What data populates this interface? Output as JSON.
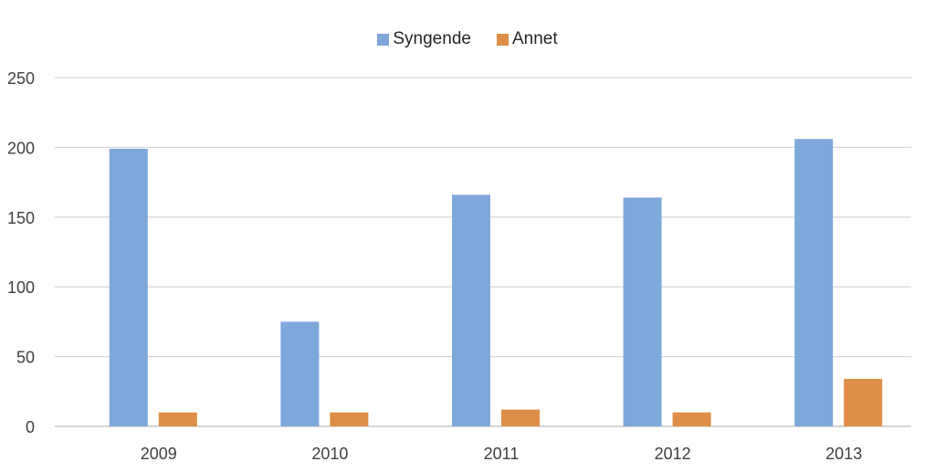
{
  "chart_data": {
    "type": "bar",
    "categories": [
      "2009",
      "2010",
      "2011",
      "2012",
      "2013"
    ],
    "series": [
      {
        "name": "Syngende",
        "values": [
          199,
          75,
          166,
          164,
          206
        ],
        "color": "#7ea7dc"
      },
      {
        "name": "Annet",
        "values": [
          10,
          10,
          12,
          10,
          34
        ],
        "color": "#de8e46"
      }
    ],
    "ylim": [
      0,
      250
    ],
    "yticks": [
      0,
      50,
      100,
      150,
      200,
      250
    ],
    "grid": true,
    "legend_position": "top-center"
  }
}
